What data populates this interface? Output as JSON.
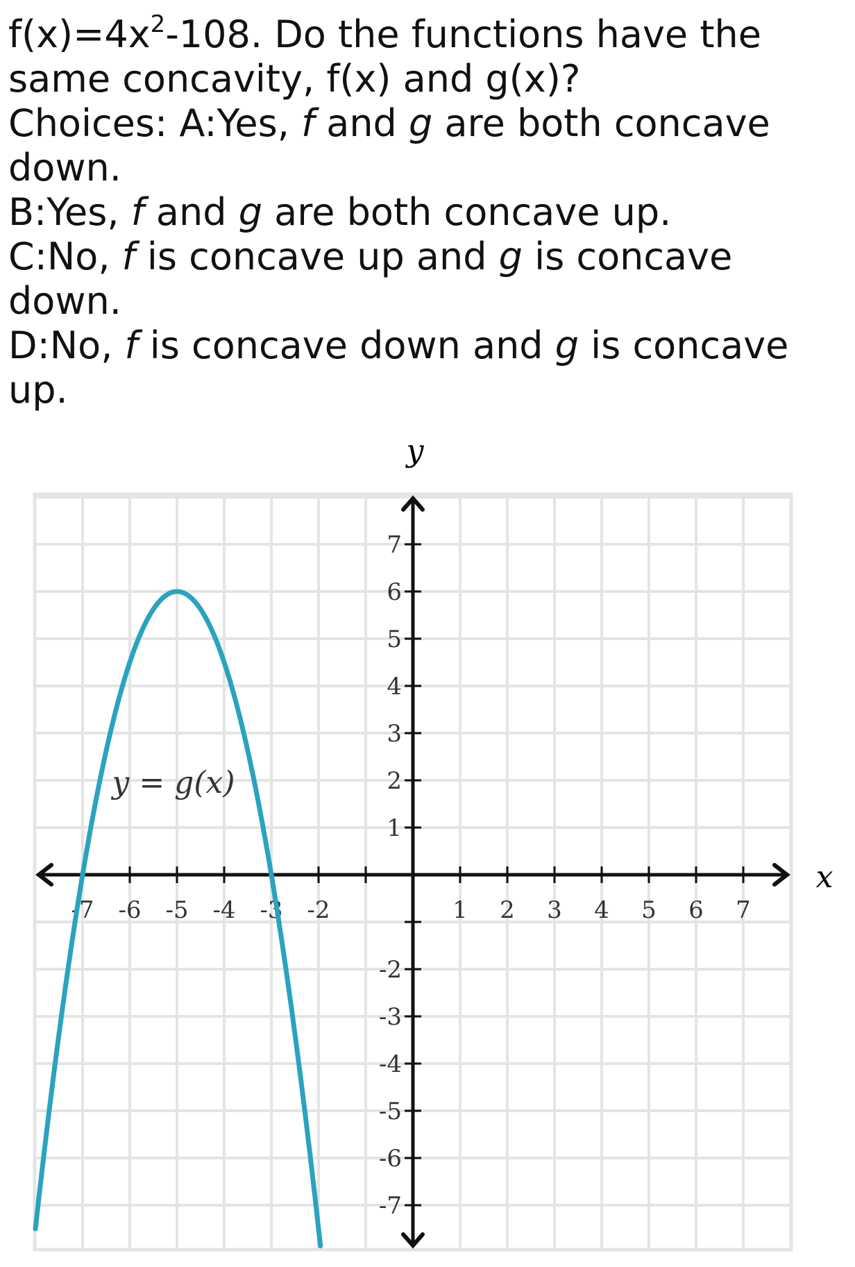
{
  "question": {
    "stem_prefix": "f(x)=4x",
    "stem_exp": "2",
    "stem_suffix": "-108. Do the functions have the same concavity, f(x) and g(x)?",
    "choices_label": "Choices: ",
    "choices": [
      {
        "prefix": "A:Yes, ",
        "f": "f",
        "and": " and ",
        "g": "g",
        "rest": " are both concave down.",
        "has_is": false
      },
      {
        "prefix": "B:Yes, ",
        "f": "f",
        "and": " and ",
        "g": "g",
        "rest": " are both concave up.",
        "has_is": false
      },
      {
        "prefix": "C:No, ",
        "f": "f",
        "mid": " is concave up and ",
        "g": "g",
        "rest": " is concave down."
      },
      {
        "prefix": "D:No, ",
        "f": "f",
        "mid": " is concave down and ",
        "g": "g",
        "rest": " is concave up."
      }
    ]
  },
  "graph": {
    "x_axis_label": "x",
    "y_axis_label": "y",
    "curve_label": "y = g(x)",
    "x_ticks": [
      "-7",
      "-6",
      "-5",
      "-4",
      "-3",
      "-2",
      "1",
      "2",
      "3",
      "4",
      "5",
      "6",
      "7"
    ],
    "y_ticks": [
      "7",
      "6",
      "5",
      "4",
      "3",
      "2",
      "1",
      "-2",
      "-3",
      "-4",
      "-5",
      "-6",
      "-7"
    ],
    "curve_color": "#2aa3bf",
    "vertex": {
      "x": -5,
      "y": 6
    },
    "leading_coefficient": -1.5,
    "x_range": [
      -8,
      8
    ],
    "y_range": [
      -8,
      8
    ]
  }
}
